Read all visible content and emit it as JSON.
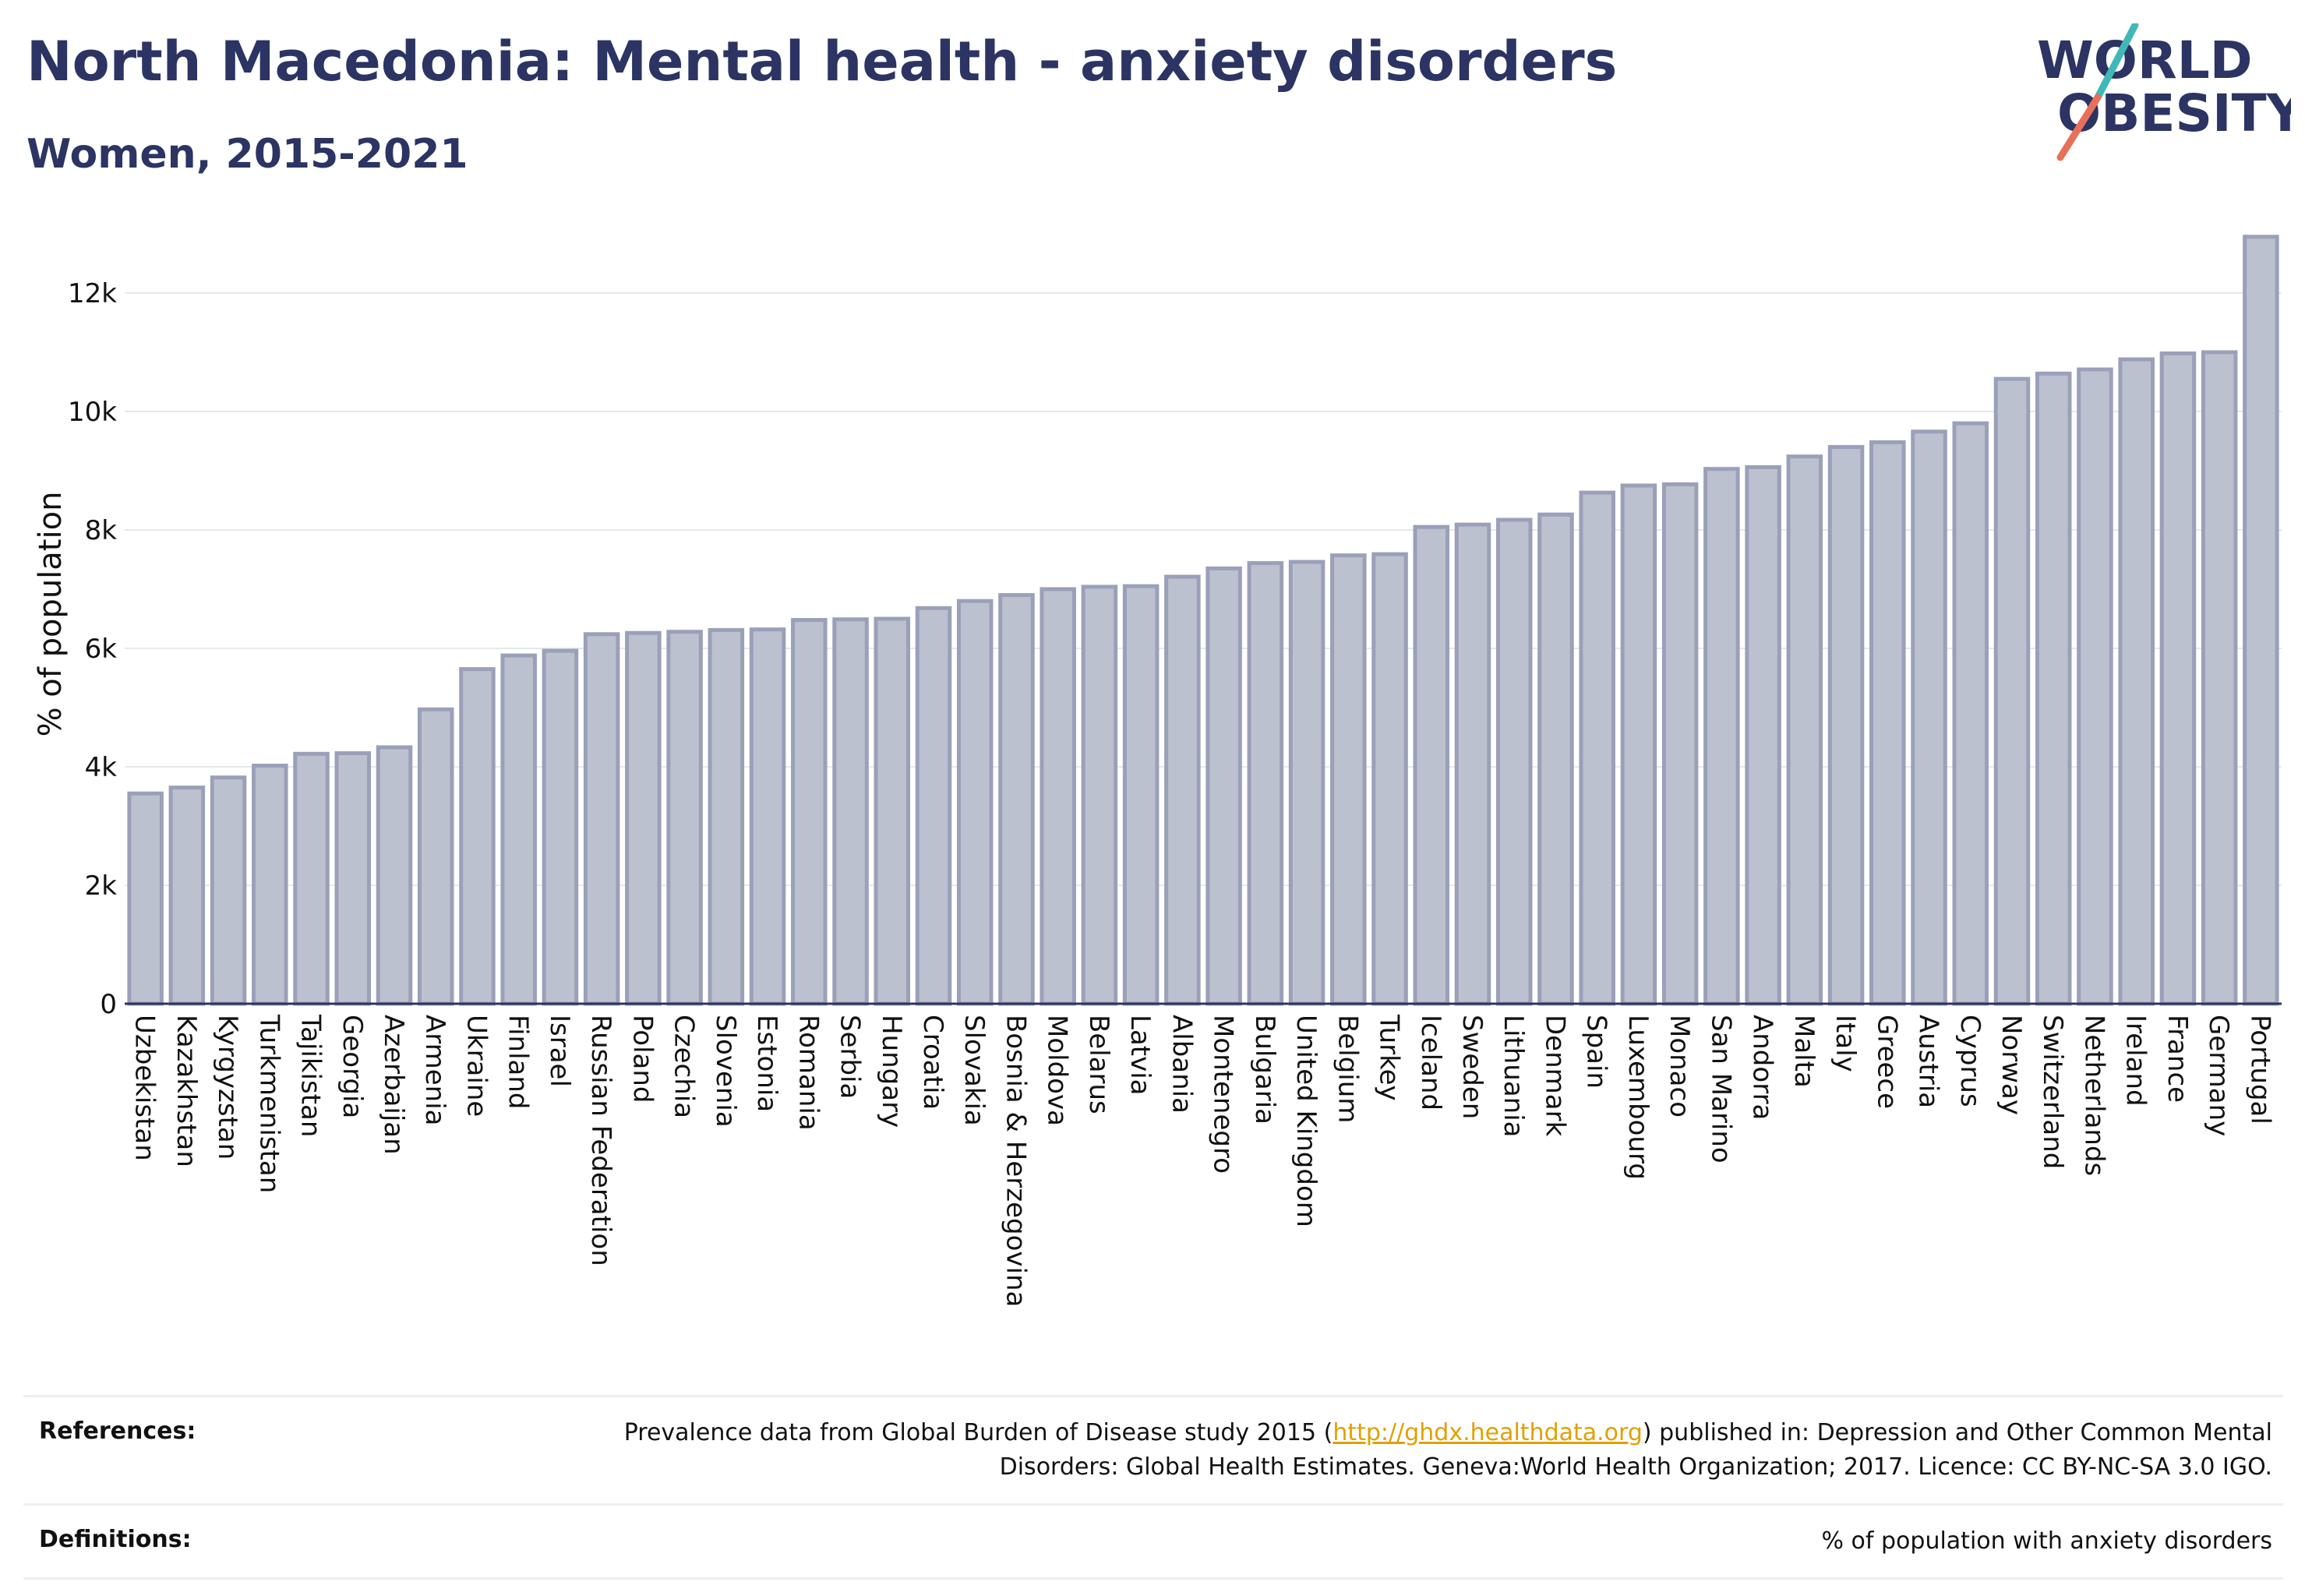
{
  "header": {
    "title": "North Macedonia: Mental health - anxiety disorders",
    "subtitle": "Women, 2015-2021"
  },
  "logo": {
    "line1": "WORLD",
    "line2": "OBESITY"
  },
  "colors": {
    "bar_fill": "#bcc1d0",
    "bar_stroke": "#9aa0b8",
    "title": "#2b3462",
    "link": "#e0a100",
    "logo_teal": "#3fb8b8",
    "logo_coral": "#e8705a"
  },
  "chart_data": {
    "type": "bar",
    "ylabel": "% of population",
    "ylim": [
      0,
      13000
    ],
    "yticks": [
      0,
      2000,
      4000,
      6000,
      8000,
      10000,
      12000
    ],
    "ytick_labels": [
      "0",
      "2k",
      "4k",
      "6k",
      "8k",
      "10k",
      "12k"
    ],
    "grid": true,
    "categories": [
      "Uzbekistan",
      "Kazakhstan",
      "Kyrgyzstan",
      "Turkmenistan",
      "Tajikistan",
      "Georgia",
      "Azerbaijan",
      "Armenia",
      "Ukraine",
      "Finland",
      "Israel",
      "Russian Federation",
      "Poland",
      "Czechia",
      "Slovenia",
      "Estonia",
      "Romania",
      "Serbia",
      "Hungary",
      "Croatia",
      "Slovakia",
      "Bosnia & Herzegovina",
      "Moldova",
      "Belarus",
      "Latvia",
      "Albania",
      "Montenegro",
      "Bulgaria",
      "United Kingdom",
      "Belgium",
      "Turkey",
      "Iceland",
      "Sweden",
      "Lithuania",
      "Denmark",
      "Spain",
      "Luxembourg",
      "Monaco",
      "San Marino",
      "Andorra",
      "Malta",
      "Italy",
      "Greece",
      "Austria",
      "Cyprus",
      "Norway",
      "Switzerland",
      "Netherlands",
      "Ireland",
      "France",
      "Germany",
      "Portugal"
    ],
    "values": [
      3550,
      3650,
      3820,
      4020,
      4220,
      4230,
      4330,
      4970,
      5650,
      5880,
      5960,
      6240,
      6260,
      6280,
      6310,
      6320,
      6480,
      6490,
      6500,
      6680,
      6800,
      6900,
      7000,
      7040,
      7050,
      7210,
      7350,
      7440,
      7460,
      7570,
      7590,
      8050,
      8090,
      8170,
      8260,
      8630,
      8750,
      8770,
      9030,
      9060,
      9240,
      9400,
      9480,
      9660,
      9800,
      10550,
      10640,
      10710,
      10880,
      10980,
      11000,
      12950
    ]
  },
  "footer": {
    "references_label": "References:",
    "references_text_before": "Prevalence data from Global Burden of Disease study 2015 (",
    "references_link": "http://ghdx.healthdata.org",
    "references_text_after": ") published in: Depression and Other Common Mental Disorders: Global Health Estimates. Geneva:World Health Organization; 2017. Licence: CC BY-NC-SA 3.0 IGO.",
    "definitions_label": "Definitions:",
    "definitions_text": "% of population with anxiety disorders"
  }
}
